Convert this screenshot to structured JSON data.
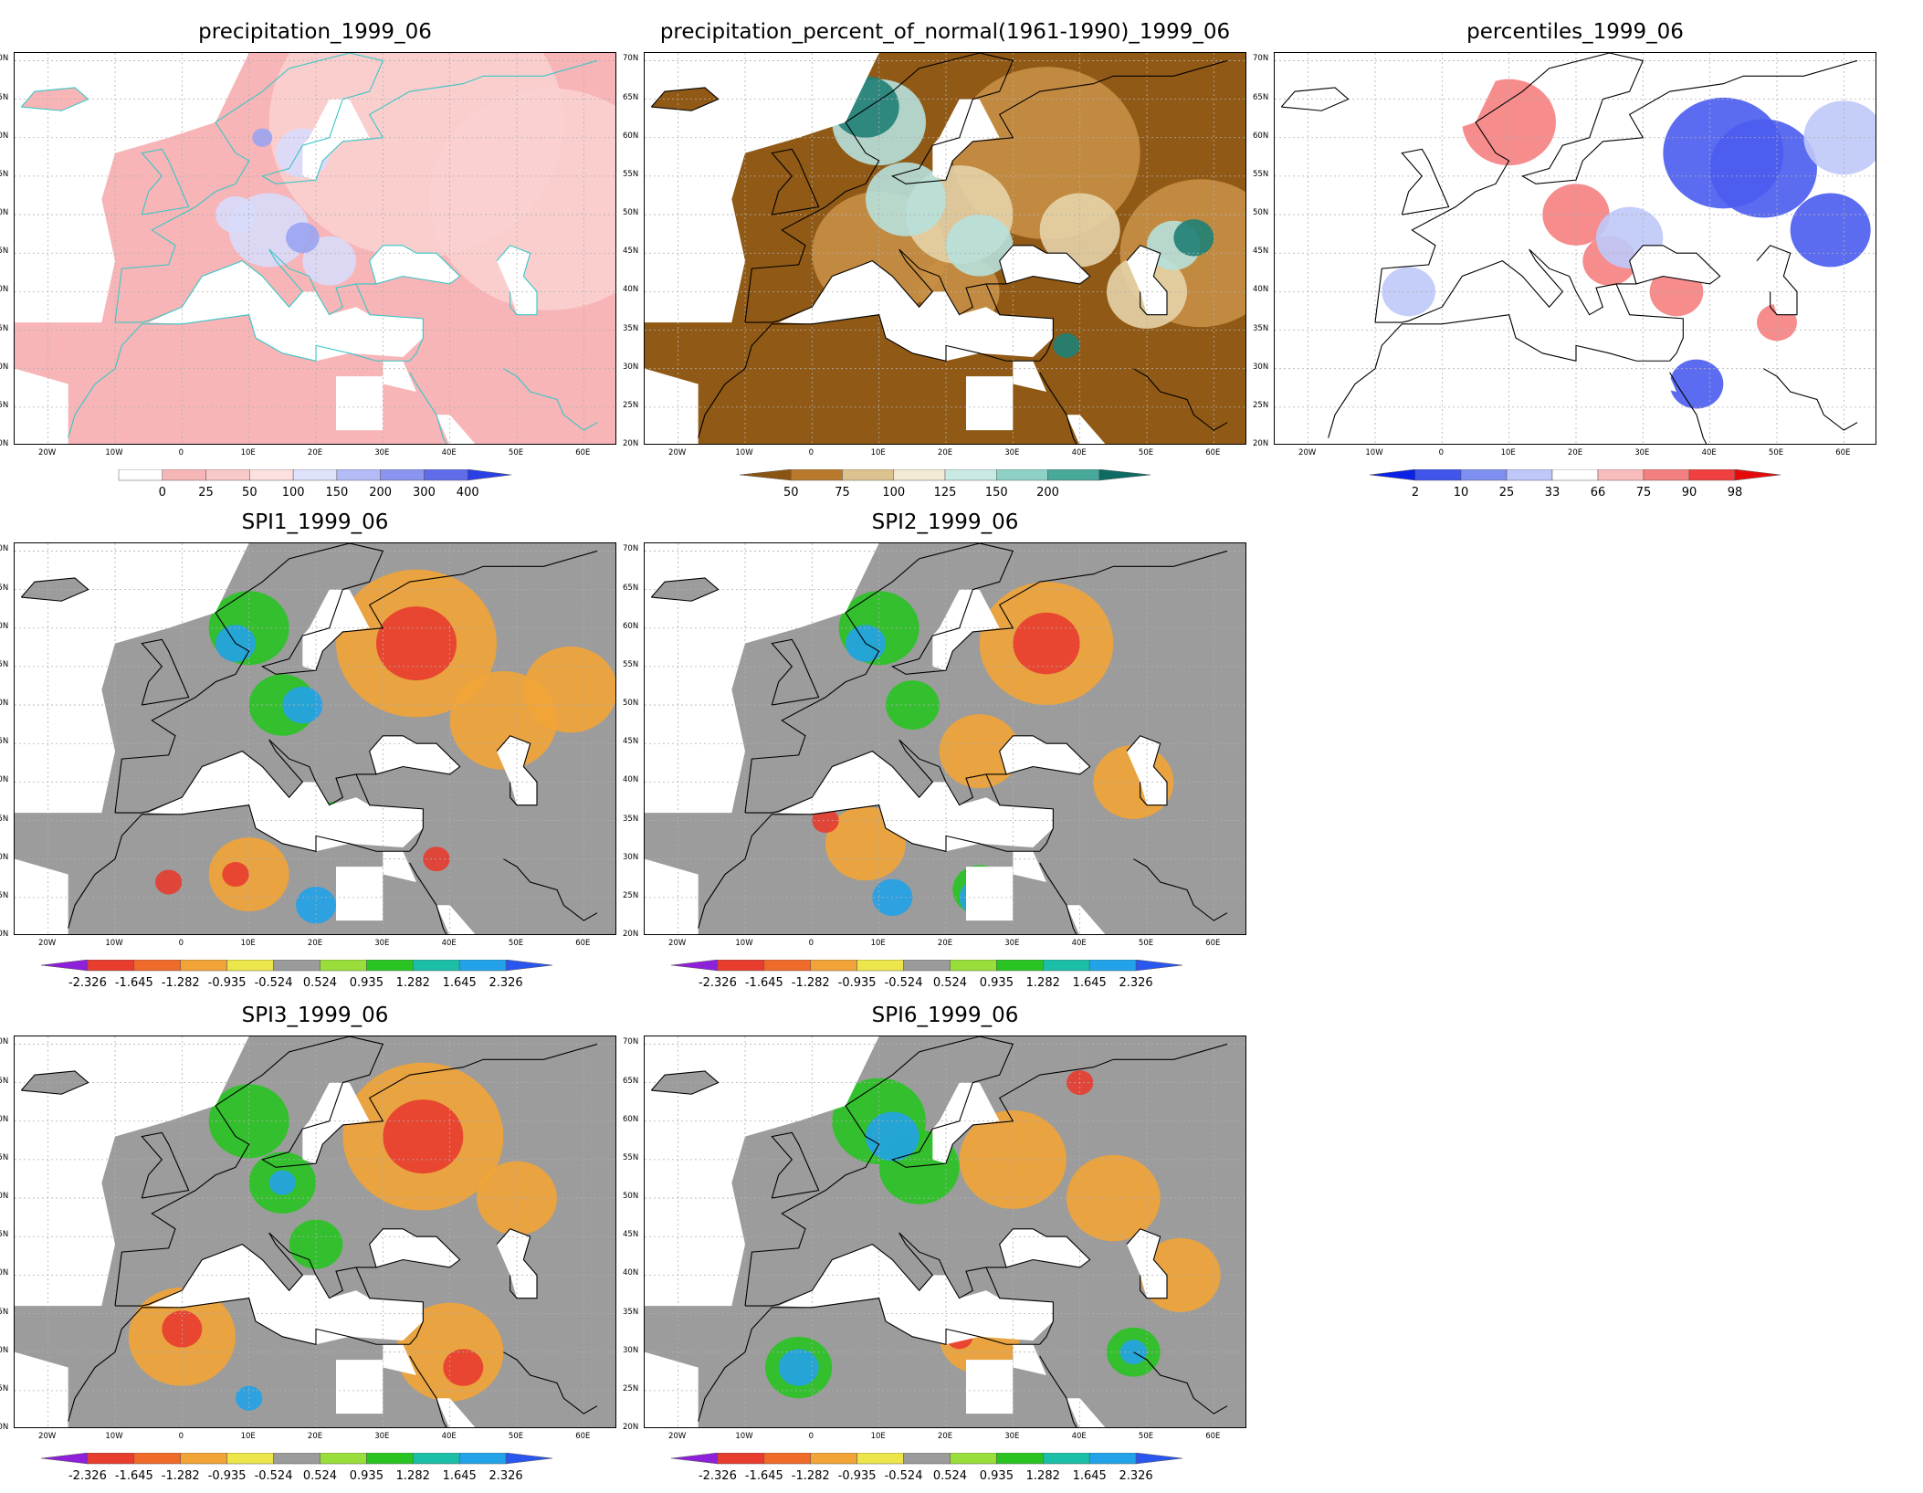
{
  "panels": [
    {
      "id": "precip",
      "title": "precipitation_1999_06",
      "colorbar": {
        "labels": [
          "0",
          "25",
          "50",
          "100",
          "150",
          "200",
          "300",
          "400"
        ],
        "colors": [
          "#ffffff",
          "#f7b6b6",
          "#f9c8c8",
          "#fde0e0",
          "#dfe2fb",
          "#b4bcf7",
          "#8a95f0",
          "#5f6deb",
          "#2b3fe6"
        ],
        "under_color": "#ffffff",
        "over_color": "#1f22d8"
      },
      "fields": {
        "base": "#f8b5b7",
        "blobs": [
          {
            "color": "#fbd0d0",
            "cx": [
              35,
              55,
              80
            ],
            "cy": [
              62,
              52,
              60
            ],
            "r": [
              22,
              18,
              15
            ]
          },
          {
            "color": "#d8dcfb",
            "cx": [
              13,
              18,
              8,
              22
            ],
            "cy": [
              48,
              58,
              50,
              44
            ],
            "r": [
              6,
              4,
              3,
              4
            ]
          },
          {
            "color": "#9aa4f2",
            "cx": [
              18,
              12
            ],
            "cy": [
              47,
              60
            ],
            "r": [
              2.5,
              1.5
            ]
          }
        ]
      }
    },
    {
      "id": "pctnormal",
      "title": "precipitation_percent_of_normal(1961-1990)_1999_06",
      "colorbar": {
        "labels": [
          "50",
          "75",
          "100",
          "125",
          "150",
          "200"
        ],
        "colors": [
          "#8c5412",
          "#b9792d",
          "#dcc28f",
          "#f2ead5",
          "#c9e9e5",
          "#8fd1c6",
          "#48a89a",
          "#0d6b63"
        ],
        "under_color": "#8c5412",
        "over_color": "#0d6b63"
      },
      "fields": {
        "base": "#905915",
        "blobs": [
          {
            "color": "#c88f45",
            "cx": [
              35,
              58,
              10,
              22
            ],
            "cy": [
              58,
              45,
              45,
              40
            ],
            "r": [
              14,
              12,
              10,
              6
            ]
          },
          {
            "color": "#e5d3a8",
            "cx": [
              22,
              40,
              50
            ],
            "cy": [
              50,
              48,
              40
            ],
            "r": [
              8,
              6,
              6
            ]
          },
          {
            "color": "#b7e0db",
            "cx": [
              10,
              14,
              25,
              54
            ],
            "cy": [
              62,
              52,
              46,
              46
            ],
            "r": [
              7,
              6,
              5,
              4
            ]
          },
          {
            "color": "#1f8076",
            "cx": [
              8,
              57,
              38
            ],
            "cy": [
              64,
              47,
              33
            ],
            "r": [
              5,
              3,
              2
            ]
          }
        ]
      }
    },
    {
      "id": "percentiles",
      "title": "percentiles_1999_06",
      "colorbar": {
        "labels": [
          "2",
          "10",
          "25",
          "33",
          "66",
          "75",
          "90",
          "98"
        ],
        "colors": [
          "#0b22e6",
          "#3f55ec",
          "#7e8ff2",
          "#bfc8f8",
          "#ffffff",
          "#f9bcbc",
          "#f47f7f",
          "#ef3f3f",
          "#e60b0b"
        ],
        "under_color": "#0b22e6",
        "over_color": "#e60b0b"
      },
      "fields": {
        "base": "#ffffff",
        "blobs": [
          {
            "color": "#4a5cf0",
            "cx": [
              42,
              48,
              58,
              38
            ],
            "cy": [
              58,
              56,
              48,
              28
            ],
            "r": [
              9,
              8,
              6,
              4
            ]
          },
          {
            "color": "#f57f7f",
            "cx": [
              10,
              20,
              25,
              35,
              50
            ],
            "cy": [
              62,
              50,
              44,
              40,
              36
            ],
            "r": [
              7,
              5,
              4,
              4,
              3
            ]
          },
          {
            "color": "#bfc8f8",
            "cx": [
              -5,
              28,
              60
            ],
            "cy": [
              40,
              47,
              60
            ],
            "r": [
              4,
              5,
              6
            ]
          }
        ]
      }
    },
    {
      "id": "spi1",
      "title": "SPI1_1999_06",
      "colorbar": {
        "labels": [
          "-2.326",
          "-1.645",
          "-1.282",
          "-0.935",
          "-0.524",
          "0.524",
          "0.935",
          "1.282",
          "1.645",
          "2.326"
        ],
        "colors": [
          "#8e20d9",
          "#e83c2f",
          "#f06a2a",
          "#f2a437",
          "#ece64a",
          "#9b9b9b",
          "#9ade3c",
          "#29c422",
          "#1bbfa8",
          "#22a2e8",
          "#2a56f0"
        ],
        "under_color": "#8a24d8",
        "over_color": "#1e3ee8"
      },
      "fields": {
        "base": "#9c9c9c",
        "blobs": [
          {
            "color": "#f2a437",
            "cx": [
              35,
              48,
              58,
              10
            ],
            "cy": [
              58,
              48,
              52,
              28
            ],
            "r": [
              12,
              8,
              7,
              6
            ]
          },
          {
            "color": "#e83c2f",
            "cx": [
              35,
              -2,
              8,
              38
            ],
            "cy": [
              58,
              27,
              28,
              30
            ],
            "r": [
              6,
              2,
              2,
              2
            ]
          },
          {
            "color": "#29c422",
            "cx": [
              10,
              15,
              22
            ],
            "cy": [
              60,
              50,
              35
            ],
            "r": [
              6,
              5,
              3
            ]
          },
          {
            "color": "#22a2e8",
            "cx": [
              8,
              18,
              20
            ],
            "cy": [
              58,
              50,
              24
            ],
            "r": [
              3,
              3,
              3
            ]
          }
        ]
      }
    },
    {
      "id": "spi2",
      "title": "SPI2_1999_06",
      "colorbar": {
        "labels": [
          "-2.326",
          "-1.645",
          "-1.282",
          "-0.935",
          "-0.524",
          "0.524",
          "0.935",
          "1.282",
          "1.645",
          "2.326"
        ],
        "colors": [
          "#8e20d9",
          "#e83c2f",
          "#f06a2a",
          "#f2a437",
          "#ece64a",
          "#9b9b9b",
          "#9ade3c",
          "#29c422",
          "#1bbfa8",
          "#22a2e8",
          "#2a56f0"
        ],
        "under_color": "#8a24d8",
        "over_color": "#1e3ee8"
      },
      "fields": {
        "base": "#9c9c9c",
        "blobs": [
          {
            "color": "#f2a437",
            "cx": [
              35,
              25,
              48,
              8
            ],
            "cy": [
              58,
              44,
              40,
              32
            ],
            "r": [
              10,
              6,
              6,
              6
            ]
          },
          {
            "color": "#e83c2f",
            "cx": [
              35,
              2
            ],
            "cy": [
              58,
              35
            ],
            "r": [
              5,
              2
            ]
          },
          {
            "color": "#29c422",
            "cx": [
              10,
              15,
              25
            ],
            "cy": [
              60,
              50,
              26
            ],
            "r": [
              6,
              4,
              4
            ]
          },
          {
            "color": "#22a2e8",
            "cx": [
              8,
              12,
              25
            ],
            "cy": [
              58,
              25,
              25
            ],
            "r": [
              3,
              3,
              3
            ]
          }
        ]
      }
    },
    {
      "id": "spi3",
      "title": "SPI3_1999_06",
      "colorbar": {
        "labels": [
          "-2.326",
          "-1.645",
          "-1.282",
          "-0.935",
          "-0.524",
          "0.524",
          "0.935",
          "1.282",
          "1.645",
          "2.326"
        ],
        "colors": [
          "#8e20d9",
          "#e83c2f",
          "#f06a2a",
          "#f2a437",
          "#ece64a",
          "#9b9b9b",
          "#9ade3c",
          "#29c422",
          "#1bbfa8",
          "#22a2e8",
          "#2a56f0"
        ],
        "under_color": "#8a24d8",
        "over_color": "#1e3ee8"
      },
      "fields": {
        "base": "#9c9c9c",
        "blobs": [
          {
            "color": "#f2a437",
            "cx": [
              36,
              0,
              40,
              50
            ],
            "cy": [
              58,
              32,
              30,
              50
            ],
            "r": [
              12,
              8,
              8,
              6
            ]
          },
          {
            "color": "#e83c2f",
            "cx": [
              36,
              0,
              42
            ],
            "cy": [
              58,
              33,
              28
            ],
            "r": [
              6,
              3,
              3
            ]
          },
          {
            "color": "#29c422",
            "cx": [
              10,
              15,
              20
            ],
            "cy": [
              60,
              52,
              44
            ],
            "r": [
              6,
              5,
              4
            ]
          },
          {
            "color": "#22a2e8",
            "cx": [
              15,
              10
            ],
            "cy": [
              52,
              24
            ],
            "r": [
              2,
              2
            ]
          }
        ]
      }
    },
    {
      "id": "spi6",
      "title": "SPI6_1999_06",
      "colorbar": {
        "labels": [
          "-2.326",
          "-1.645",
          "-1.282",
          "-0.935",
          "-0.524",
          "0.524",
          "0.935",
          "1.282",
          "1.645",
          "2.326"
        ],
        "colors": [
          "#8e20d9",
          "#e83c2f",
          "#f06a2a",
          "#f2a437",
          "#ece64a",
          "#9b9b9b",
          "#9ade3c",
          "#29c422",
          "#1bbfa8",
          "#22a2e8",
          "#2a56f0"
        ],
        "under_color": "#8a24d8",
        "over_color": "#1e3ee8"
      },
      "fields": {
        "base": "#9c9c9c",
        "blobs": [
          {
            "color": "#f2a437",
            "cx": [
              30,
              45,
              55,
              25
            ],
            "cy": [
              55,
              50,
              40,
              32
            ],
            "r": [
              8,
              7,
              6,
              6
            ]
          },
          {
            "color": "#e83c2f",
            "cx": [
              40,
              22
            ],
            "cy": [
              65,
              32
            ],
            "r": [
              2,
              2
            ]
          },
          {
            "color": "#29c422",
            "cx": [
              10,
              16,
              -2,
              48
            ],
            "cy": [
              60,
              54,
              28,
              30
            ],
            "r": [
              7,
              6,
              5,
              4
            ]
          },
          {
            "color": "#22a2e8",
            "cx": [
              12,
              -2,
              48
            ],
            "cy": [
              58,
              28,
              30
            ],
            "r": [
              4,
              3,
              2
            ]
          }
        ]
      }
    }
  ],
  "axes": {
    "lat_labels": [
      "70N",
      "65N",
      "60N",
      "55N",
      "50N",
      "45N",
      "40N",
      "35N",
      "30N",
      "25N",
      "20N"
    ],
    "lat_values": [
      70,
      65,
      60,
      55,
      50,
      45,
      40,
      35,
      30,
      25,
      20
    ],
    "lon_labels": [
      "20W",
      "10W",
      "0",
      "10E",
      "20E",
      "30E",
      "40E",
      "50E",
      "60E"
    ],
    "lon_values": [
      -20,
      -10,
      0,
      10,
      20,
      30,
      40,
      50,
      60
    ],
    "lon_range": [
      -25,
      65
    ],
    "lat_range": [
      20,
      71
    ]
  }
}
